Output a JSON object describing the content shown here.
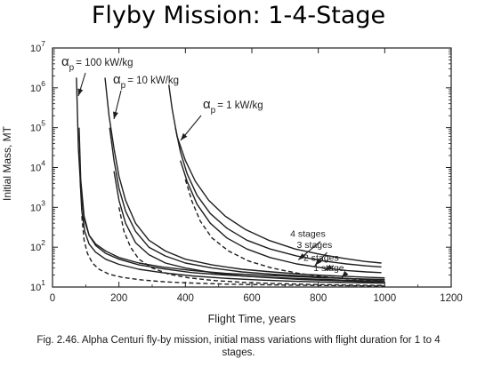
{
  "page": {
    "title": "Flyby Mission: 1-4-Stage"
  },
  "caption": {
    "line1": "Fig. 2.46.  Alpha Centuri fly-by mission, initial mass variations with flight duration for 1 to 4",
    "line2": "stages."
  },
  "chart_data": {
    "type": "line",
    "xlabel": "Flight Time, years",
    "ylabel": "Initial Mass, MT",
    "xlim": [
      0,
      1200
    ],
    "ylim": [
      10,
      10000000
    ],
    "yscale": "log",
    "grid": false,
    "xticks": [
      0,
      200,
      400,
      600,
      800,
      1000,
      1200
    ],
    "yticks": [
      {
        "value": 10,
        "exp": "1"
      },
      {
        "value": 100,
        "exp": "2"
      },
      {
        "value": 1000,
        "exp": "3"
      },
      {
        "value": 10000,
        "exp": "4"
      },
      {
        "value": 100000,
        "exp": "5"
      },
      {
        "value": 1000000,
        "exp": "6"
      },
      {
        "value": 10000000,
        "exp": "7"
      }
    ],
    "ytick_base": "10",
    "families": [
      {
        "alpha_label": "α",
        "alpha_sub": "p",
        "alpha_value": "= 100 kW/kg",
        "series": [
          {
            "stages": 4,
            "x": [
              72,
              78,
              85,
              95,
              110,
              130,
              160,
              200,
              260,
              330,
              420,
              520,
              620,
              720,
              820,
              920,
              1000
            ],
            "y": [
              1800000,
              30000,
              3000,
              500,
              200,
              120,
              80,
              55,
              40,
              32,
              26,
              22,
              20,
              18.5,
              17,
              16,
              15.5
            ]
          },
          {
            "stages": 3,
            "x": [
              80,
              85,
              95,
              110,
              130,
              160,
              200,
              260,
              330,
              420,
              520,
              620,
              720,
              820,
              920,
              1000
            ],
            "y": [
              100000,
              5000,
              600,
              200,
              110,
              70,
              50,
              36,
              29,
              23,
              20,
              18,
              16.5,
              15.5,
              14.5,
              14
            ]
          },
          {
            "stages": 2,
            "x": [
              83,
              88,
              97,
              110,
              130,
              160,
              200,
              260,
              330,
              420,
              520,
              620,
              720,
              820,
              920,
              1000
            ],
            "y": [
              5000,
              800,
              250,
              120,
              75,
              50,
              37,
              28,
              23,
              19,
              16.5,
              15,
              14,
              13.3,
              12.8,
              12.5
            ]
          },
          {
            "stages": 1,
            "x": [
              88,
              95,
              105,
              120,
              140,
              170,
              210,
              270,
              340,
              430,
              530,
              630,
              730,
              830,
              930,
              1000
            ],
            "y": [
              600,
              150,
              70,
              40,
              28,
              21,
              17.5,
              15,
              13.5,
              12.5,
              11.8,
              11.4,
              11.1,
              10.9,
              10.7,
              10.6
            ]
          }
        ]
      },
      {
        "alpha_label": "α",
        "alpha_sub": "p",
        "alpha_value": "= 10 kW/kg",
        "series": [
          {
            "stages": 4,
            "x": [
              158,
              170,
              185,
              200,
              220,
              250,
              290,
              340,
              400,
              480,
              570,
              660,
              750,
              850,
              950,
              1000
            ],
            "y": [
              1800000,
              200000,
              30000,
              6000,
              1500,
              400,
              150,
              80,
              50,
              36,
              28,
              24,
              21,
              19,
              17.5,
              17
            ]
          },
          {
            "stages": 3,
            "x": [
              172,
              185,
              200,
              220,
              250,
              290,
              340,
              400,
              480,
              570,
              660,
              750,
              850,
              950,
              1000
            ],
            "y": [
              100000,
              15000,
              3000,
              800,
              250,
              100,
              60,
              40,
              30,
              24,
              21,
              19,
              17,
              15.5,
              15
            ]
          },
          {
            "stages": 2,
            "x": [
              185,
              200,
              220,
              250,
              290,
              340,
              400,
              480,
              570,
              660,
              750,
              850,
              950,
              1000
            ],
            "y": [
              8000,
              1500,
              400,
              130,
              65,
              40,
              30,
              23,
              19,
              17,
              15.5,
              14.5,
              13.5,
              13
            ]
          },
          {
            "stages": 1,
            "x": [
              200,
              215,
              235,
              260,
              300,
              350,
              410,
              490,
              580,
              670,
              760,
              860,
              960,
              1000
            ],
            "y": [
              1000,
              250,
              100,
              50,
              30,
              21,
              17,
              14.5,
              13,
              12.2,
              11.7,
              11.3,
              11,
              10.9
            ]
          }
        ]
      },
      {
        "alpha_label": "α",
        "alpha_sub": "p",
        "alpha_value": "= 1 kW/kg",
        "series": [
          {
            "stages": 4,
            "x": [
              350,
              360,
              375,
              400,
              430,
              470,
              520,
              580,
              650,
              730,
              810,
              880,
              940,
              990
            ],
            "y": [
              1200000,
              300000,
              60000,
              15000,
              4500,
              1500,
              600,
              280,
              150,
              90,
              65,
              52,
              44,
              40
            ]
          },
          {
            "stages": 3,
            "x": [
              370,
              385,
              405,
              435,
              475,
              525,
              585,
              655,
              735,
              815,
              885,
              945,
              990
            ],
            "y": [
              100000,
              25000,
              7000,
              2000,
              700,
              300,
              150,
              90,
              60,
              45,
              38,
              34,
              32
            ]
          },
          {
            "stages": 2,
            "x": [
              385,
              405,
              435,
              475,
              525,
              585,
              655,
              735,
              815,
              885,
              945,
              990
            ],
            "y": [
              15000,
              4500,
              1200,
              400,
              170,
              90,
              55,
              38,
              30,
              26,
              24,
              23
            ]
          },
          {
            "stages": 1,
            "x": [
              400,
              420,
              445,
              480,
              530,
              590,
              660,
              740,
              820,
              890,
              950,
              990
            ],
            "y": [
              5000,
              1400,
              450,
              170,
              80,
              45,
              30,
              22,
              18,
              16,
              15,
              14.5
            ]
          }
        ]
      }
    ],
    "stage_labels": [
      {
        "label": "4 stages",
        "x": 860,
        "y": 180,
        "tx": 740,
        "ty": 48
      },
      {
        "label": "3 stages",
        "x": 880,
        "y": 95,
        "tx": 790,
        "ty": 35
      },
      {
        "label": "2 stages",
        "x": 900,
        "y": 45,
        "tx": 820,
        "ty": 26
      },
      {
        "label": "1 stage",
        "x": 930,
        "y": 25,
        "tx": 870,
        "ty": 17
      }
    ]
  }
}
